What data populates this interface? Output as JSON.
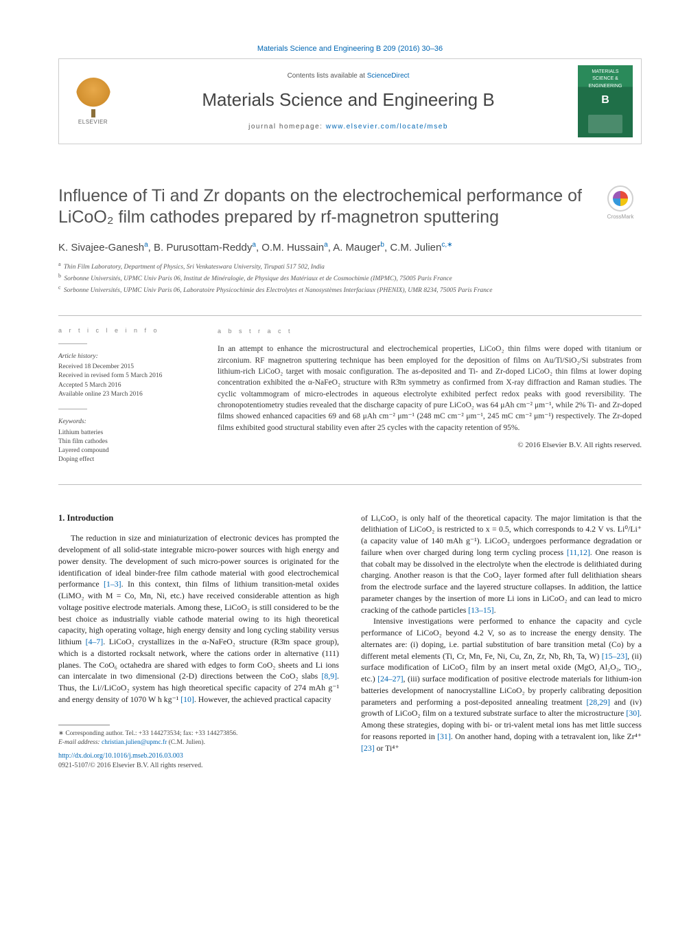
{
  "header": {
    "citation_link": "Materials Science and Engineering B 209 (2016) 30–36",
    "contents_prefix": "Contents lists available at ",
    "contents_link": "ScienceDirect",
    "journal_name": "Materials Science and Engineering B",
    "homepage_prefix": "journal homepage: ",
    "homepage_link": "www.elsevier.com/locate/mseb",
    "elsevier_label": "ELSEVIER",
    "cover": {
      "line1": "MATERIALS",
      "line2": "SCIENCE &",
      "line3": "ENGINEERING",
      "letter": "B"
    },
    "crossmark": "CrossMark"
  },
  "article": {
    "title": "Influence of Ti and Zr dopants on the electrochemical performance of LiCoO₂ film cathodes prepared by rf-magnetron sputtering",
    "authors_html": "K. Sivajee-Ganesh<sup>a</sup>, B. Purusottam-Reddy<sup>a</sup>, O.M. Hussain<sup>a</sup>, A. Mauger<sup>b</sup>, C.M. Julien<sup>c,∗</sup>",
    "affiliations": [
      {
        "sup": "a",
        "text": "Thin Film Laboratory, Department of Physics, Sri Venkateswara University, Tirupati 517 502, India"
      },
      {
        "sup": "b",
        "text": "Sorbonne Universités, UPMC Univ Paris 06, Institut de Minéralogie, de Physique des Matériaux et de Cosmochimie (IMPMC), 75005 Paris France"
      },
      {
        "sup": "c",
        "text": "Sorbonne Universités, UPMC Univ Paris 06, Laboratoire Physicochimie des Electrolytes et Nanosystèmes Interfaciaux (PHENIX), UMR 8234, 75005 Paris France"
      }
    ]
  },
  "info": {
    "label": "a r t i c l e   i n f o",
    "history_label": "Article history:",
    "history": [
      "Received 18 December 2015",
      "Received in revised form 5 March 2016",
      "Accepted 5 March 2016",
      "Available online 23 March 2016"
    ],
    "keywords_label": "Keywords:",
    "keywords": [
      "Lithium batteries",
      "Thin film cathodes",
      "Layered compound",
      "Doping effect"
    ]
  },
  "abstract": {
    "label": "a b s t r a c t",
    "text": "In an attempt to enhance the microstructural and electrochemical properties, LiCoO₂ thin films were doped with titanium or zirconium. RF magnetron sputtering technique has been employed for the deposition of films on Au/Ti/SiO₂/Si substrates from lithium-rich LiCoO₂ target with mosaic configuration. The as-deposited and Ti- and Zr-doped LiCoO₂ thin films at lower doping concentration exhibited the α-NaFeO₂ structure with R3̄m symmetry as confirmed from X-ray diffraction and Raman studies. The cyclic voltammogram of micro-electrodes in aqueous electrolyte exhibited perfect redox peaks with good reversibility. The chronopotentiometry studies revealed that the discharge capacity of pure LiCoO₂ was 64 μAh cm⁻² μm⁻¹, while 2% Ti- and Zr-doped films showed enhanced capacities 69 and 68 μAh cm⁻² μm⁻¹ (248 mC cm⁻² μm⁻¹, 245 mC cm⁻² μm⁻¹) respectively. The Zr-doped films exhibited good structural stability even after 25 cycles with the capacity retention of 95%.",
    "copyright": "© 2016 Elsevier B.V. All rights reserved."
  },
  "body": {
    "section_head": "1. Introduction",
    "para1": "The reduction in size and miniaturization of electronic devices has prompted the development of all solid-state integrable micro-power sources with high energy and power density. The development of such micro-power sources is originated for the identification of ideal binder-free film cathode material with good electrochemical performance [1–3]. In this context, thin films of lithium transition-metal oxides (LiMO₂ with M = Co, Mn, Ni, etc.) have received considerable attention as high voltage positive electrode materials. Among these, LiCoO₂ is still considered to be the best choice as industrially viable cathode material owing to its high theoretical capacity, high operating voltage, high energy density and long cycling stability versus lithium [4–7]. LiCoO₂ crystallizes in the α-NaFeO₂ structure (R3̄m space group), which is a distorted rocksalt network, where the cations order in alternative (111) planes. The CoO₆ octahedra are shared with edges to form CoO₂ sheets and Li ions can intercalate in two dimensional (2-D) directions between the CoO₂ slabs [8,9]. Thus, the Li//LiCoO₂ system has high theoretical specific capacity of 274 mAh g⁻¹ and energy density of 1070 W h kg⁻¹ [10]. However, the achieved practical capacity",
    "para2": "of LiₓCoO₂ is only half of the theoretical capacity. The major limitation is that the delithiation of LiCoO₂ is restricted to x = 0.5, which corresponds to 4.2 V vs. Li⁰/Li⁺ (a capacity value of 140 mAh g⁻¹). LiCoO₂ undergoes performance degradation or failure when over charged during long term cycling process [11,12]. One reason is that cobalt may be dissolved in the electrolyte when the electrode is delithiated during charging. Another reason is that the CoO₂ layer formed after full delithiation shears from the electrode surface and the layered structure collapses. In addition, the lattice parameter changes by the insertion of more Li ions in LiCoO₂ and can lead to micro cracking of the cathode particles [13–15].",
    "para3": "Intensive investigations were performed to enhance the capacity and cycle performance of LiCoO₂ beyond 4.2 V, so as to increase the energy density. The alternates are: (i) doping, i.e. partial substitution of bare transition metal (Co) by a different metal elements (Ti, Cr, Mn, Fe, Ni, Cu, Zn, Zr, Nb, Rh, Ta, W) [15–23], (ii) surface modification of LiCoO₂ film by an insert metal oxide (MgO, Al₂O₃, TiO₂, etc.) [24–27], (iii) surface modification of positive electrode materials for lithium-ion batteries development of nanocrystalline LiCoO₂ by properly calibrating deposition parameters and performing a post-deposited annealing treatment [28,29] and (iv) growth of LiCoO₂ film on a textured substrate surface to alter the microstructure [30]. Among these strategies, doping with bi- or tri-valent metal ions has met little success for reasons reported in [31]. On another hand, doping with a tetravalent ion, like Zr⁴⁺ [23] or Ti⁴⁺"
  },
  "footnotes": {
    "corr": "∗ Corresponding author. Tel.: +33 144273534; fax: +33 144273856.",
    "email_label": "E-mail address: ",
    "email": "christian.julien@upmc.fr",
    "email_suffix": " (C.M. Julien).",
    "doi": "http://dx.doi.org/10.1016/j.mseb.2016.03.003",
    "copyright": "0921-5107/© 2016 Elsevier B.V. All rights reserved."
  },
  "colors": {
    "link": "#0066b3",
    "text": "#333333",
    "heading": "#525252",
    "cover_green": "#2a8a5a"
  }
}
